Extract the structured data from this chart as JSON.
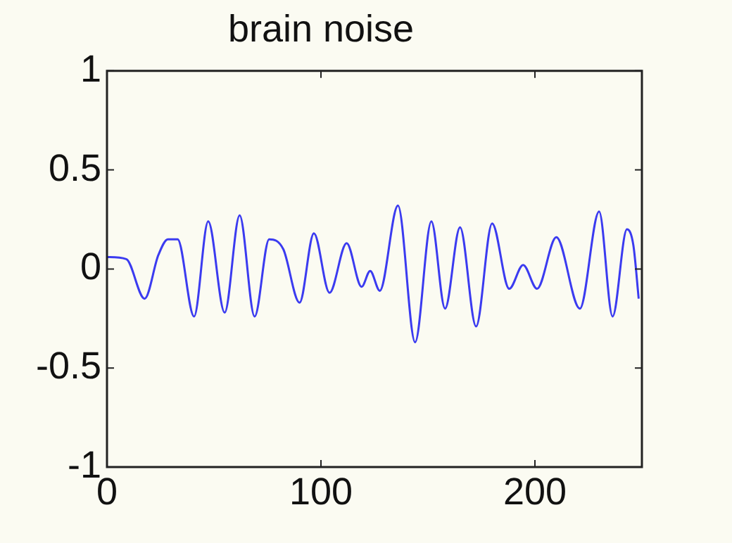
{
  "chart_data": {
    "type": "line",
    "title": "brain noise",
    "xlim": [
      0,
      250
    ],
    "xticks": [
      0,
      100,
      200
    ],
    "ylim": [
      -1,
      1
    ],
    "yticks": [
      -1,
      -0.5,
      0,
      0.5,
      1
    ],
    "grid": false,
    "legend": false,
    "marker": "none",
    "line_style": "solid",
    "series": [
      {
        "color": "#3b3bf0",
        "x": [
          0,
          9,
          17.6,
          24,
          28.5,
          33,
          40.7,
          47.3,
          55,
          62,
          69,
          75.8,
          82.4,
          90,
          96.7,
          104,
          112,
          119,
          123,
          127.5,
          136,
          144,
          151.6,
          158,
          165,
          172.5,
          180,
          188,
          194.5,
          201,
          210,
          221,
          230,
          236.3,
          243,
          246,
          248.5
        ],
        "values": [
          0.06,
          0.05,
          -0.15,
          0.07,
          0.15,
          0.15,
          -0.24,
          0.24,
          -0.22,
          0.27,
          -0.24,
          0.15,
          0.1,
          -0.17,
          0.18,
          -0.12,
          0.13,
          -0.09,
          -0.01,
          -0.11,
          0.32,
          -0.37,
          0.24,
          -0.2,
          0.21,
          -0.29,
          0.23,
          -0.1,
          0.02,
          -0.1,
          0.16,
          -0.2,
          0.29,
          -0.24,
          0.2,
          0.12,
          -0.15
        ]
      }
    ]
  }
}
